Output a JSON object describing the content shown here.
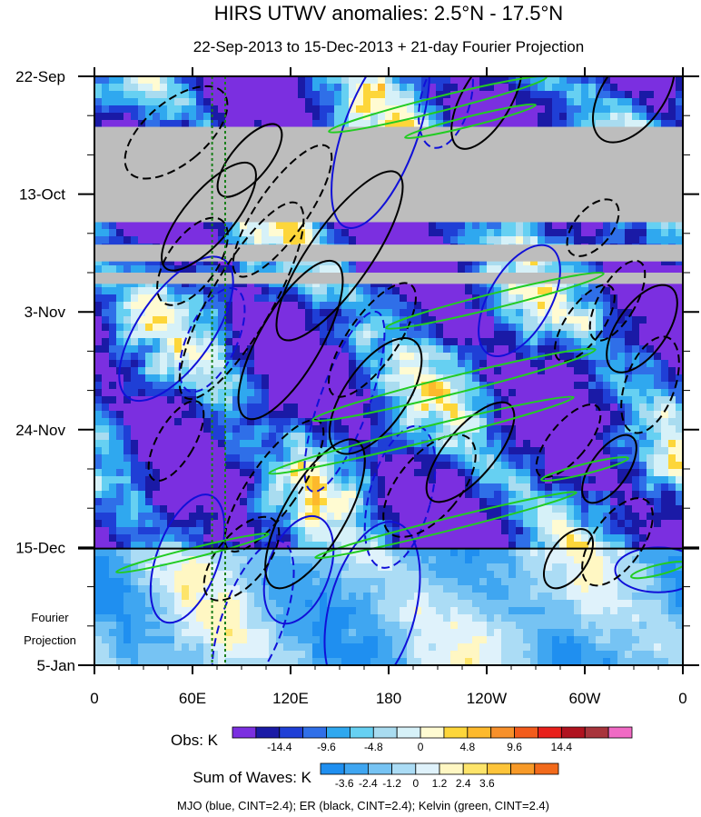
{
  "chart_data": {
    "type": "heatmap",
    "title": "HIRS UTWV anomalies: 2.5°N - 17.5°N",
    "subtitle": "22-Sep-2013 to 15-Dec-2013 + 21-day Fourier Projection",
    "x_ticks": [
      "0",
      "60E",
      "120E",
      "180",
      "120W",
      "60W",
      "0"
    ],
    "x_range_deg_east": [
      0,
      360
    ],
    "y_ticks": [
      "22-Sep",
      "13-Oct",
      "3-Nov",
      "24-Nov",
      "15-Dec",
      "5-Jan"
    ],
    "y_range_days": [
      0,
      105
    ],
    "y_tick_days": [
      0,
      21,
      42,
      63,
      84,
      105
    ],
    "projection_label_line1": "Fourier",
    "projection_label_line2": "Projection",
    "projection_start_day": 84,
    "vertical_dotted_lines_deg_east": [
      72,
      80
    ],
    "missing_bands_days": [
      [
        9,
        26
      ],
      [
        30,
        33
      ],
      [
        35,
        37
      ]
    ],
    "obs_colorbar": {
      "label": "Obs: K",
      "tick_labels": [
        "-14.4",
        "-9.6",
        "-4.8",
        "0",
        "4.8",
        "9.6",
        "14.4"
      ],
      "colors": [
        "#7b2fe0",
        "#1a1aa6",
        "#1f3fd6",
        "#2f6fe8",
        "#2fa8ef",
        "#66d0f2",
        "#a9dcf0",
        "#d6f1f8",
        "#fffbd2",
        "#fdd63a",
        "#fdb92c",
        "#f7902a",
        "#f25b1b",
        "#e8201b",
        "#b0131f",
        "#a8343c",
        "#f06ac4"
      ]
    },
    "waves_colorbar": {
      "label": "Sum of Waves: K",
      "tick_labels": [
        "-3.6",
        "-2.4",
        "-1.2",
        "0",
        "1.2",
        "2.4",
        "3.6"
      ],
      "colors": [
        "#1f8ff0",
        "#3fa6f1",
        "#76c3f3",
        "#abdcf5",
        "#dff2fb",
        "#fff7c3",
        "#fde46a",
        "#fdc43a",
        "#f79a28",
        "#f26a1b"
      ]
    },
    "footnote": "MJO (blue, CINT=2.4); ER (black, CINT=2.4); Kelvin (green, CINT=2.4)",
    "series": [
      {
        "name": "MJO",
        "color": "#1010d8",
        "contour_interval": 2.4
      },
      {
        "name": "ER",
        "color": "#000000",
        "contour_interval": 2.4
      },
      {
        "name": "Kelvin",
        "color": "#22cc22",
        "contour_interval": 2.4
      }
    ],
    "contours": [
      {
        "wave": "MJO",
        "sign": "pos",
        "lon": 175,
        "day": 10,
        "a": 6,
        "b": 18,
        "ang": 20
      },
      {
        "wave": "MJO",
        "sign": "neg",
        "lon": 215,
        "day": 4,
        "a": 4,
        "b": 9,
        "ang": 15
      },
      {
        "wave": "MJO",
        "sign": "pos",
        "lon": 50,
        "day": 45,
        "a": 6,
        "b": 15,
        "ang": 35
      },
      {
        "wave": "MJO",
        "sign": "neg",
        "lon": 72,
        "day": 47,
        "a": 4,
        "b": 10,
        "ang": 25
      },
      {
        "wave": "MJO",
        "sign": "neg",
        "lon": 153,
        "day": 58,
        "a": 4,
        "b": 17,
        "ang": 20
      },
      {
        "wave": "MJO",
        "sign": "neg",
        "lon": 187,
        "day": 75,
        "a": 5,
        "b": 13,
        "ang": 15
      },
      {
        "wave": "MJO",
        "sign": "pos",
        "lon": 260,
        "day": 40,
        "a": 5,
        "b": 11,
        "ang": 30
      },
      {
        "wave": "MJO",
        "sign": "pos",
        "lon": 57,
        "day": 86,
        "a": 5,
        "b": 12,
        "ang": 20
      },
      {
        "wave": "MJO",
        "sign": "pos",
        "lon": 125,
        "day": 88,
        "a": 5,
        "b": 10,
        "ang": 20
      },
      {
        "wave": "MJO",
        "sign": "pos",
        "lon": 170,
        "day": 95,
        "a": 7,
        "b": 16,
        "ang": 15
      },
      {
        "wave": "MJO",
        "sign": "neg",
        "lon": 97,
        "day": 97,
        "a": 5,
        "b": 15,
        "ang": 20
      },
      {
        "wave": "MJO",
        "sign": "pos",
        "lon": 345,
        "day": 88,
        "a": 7,
        "b": 4,
        "ang": 0
      },
      {
        "wave": "ER",
        "sign": "pos",
        "lon": 240,
        "day": 4,
        "a": 4,
        "b": 10,
        "ang": 30
      },
      {
        "wave": "ER",
        "sign": "pos",
        "lon": 330,
        "day": 3,
        "a": 5,
        "b": 10,
        "ang": 35
      },
      {
        "wave": "ER",
        "sign": "neg",
        "lon": 50,
        "day": 10,
        "a": 5,
        "b": 11,
        "ang": 50
      },
      {
        "wave": "ER",
        "sign": "pos",
        "lon": 95,
        "day": 15,
        "a": 3,
        "b": 8,
        "ang": 40
      },
      {
        "wave": "ER",
        "sign": "pos",
        "lon": 70,
        "day": 25,
        "a": 4,
        "b": 12,
        "ang": 40
      },
      {
        "wave": "ER",
        "sign": "neg",
        "lon": 115,
        "day": 24,
        "a": 4,
        "b": 14,
        "ang": 35
      },
      {
        "wave": "ER",
        "sign": "pos",
        "lon": 150,
        "day": 32,
        "a": 5,
        "b": 18,
        "ang": 35
      },
      {
        "wave": "ER",
        "sign": "neg",
        "lon": 60,
        "day": 33,
        "a": 4,
        "b": 9,
        "ang": 35
      },
      {
        "wave": "ER",
        "sign": "neg",
        "lon": 90,
        "day": 40,
        "a": 5,
        "b": 20,
        "ang": 30
      },
      {
        "wave": "ER",
        "sign": "pos",
        "lon": 120,
        "day": 47,
        "a": 5,
        "b": 16,
        "ang": 30
      },
      {
        "wave": "ER",
        "sign": "pos",
        "lon": 172,
        "day": 57,
        "a": 5,
        "b": 12,
        "ang": 35
      },
      {
        "wave": "ER",
        "sign": "neg",
        "lon": 170,
        "day": 47,
        "a": 4,
        "b": 12,
        "ang": 35
      },
      {
        "wave": "ER",
        "sign": "neg",
        "lon": 50,
        "day": 65,
        "a": 3,
        "b": 8,
        "ang": 30
      },
      {
        "wave": "ER",
        "sign": "neg",
        "lon": 110,
        "day": 73,
        "a": 4,
        "b": 14,
        "ang": 35
      },
      {
        "wave": "ER",
        "sign": "pos",
        "lon": 135,
        "day": 78,
        "a": 5,
        "b": 15,
        "ang": 30
      },
      {
        "wave": "ER",
        "sign": "neg",
        "lon": 205,
        "day": 73,
        "a": 5,
        "b": 11,
        "ang": 40
      },
      {
        "wave": "ER",
        "sign": "pos",
        "lon": 230,
        "day": 67,
        "a": 4,
        "b": 11,
        "ang": 40
      },
      {
        "wave": "ER",
        "sign": "neg",
        "lon": 290,
        "day": 65,
        "a": 3,
        "b": 8,
        "ang": 40
      },
      {
        "wave": "ER",
        "sign": "pos",
        "lon": 315,
        "day": 70,
        "a": 3,
        "b": 7,
        "ang": 35
      },
      {
        "wave": "ER",
        "sign": "neg",
        "lon": 320,
        "day": 83,
        "a": 4,
        "b": 9,
        "ang": 35
      },
      {
        "wave": "ER",
        "sign": "pos",
        "lon": 290,
        "day": 86,
        "a": 3,
        "b": 6,
        "ang": 35
      },
      {
        "wave": "ER",
        "sign": "neg",
        "lon": 340,
        "day": 55,
        "a": 4,
        "b": 9,
        "ang": 20
      },
      {
        "wave": "ER",
        "sign": "neg",
        "lon": 300,
        "day": 44,
        "a": 3,
        "b": 8,
        "ang": 35
      },
      {
        "wave": "ER",
        "sign": "neg",
        "lon": 320,
        "day": 40,
        "a": 3,
        "b": 8,
        "ang": 30
      },
      {
        "wave": "ER",
        "sign": "pos",
        "lon": 335,
        "day": 45,
        "a": 4,
        "b": 9,
        "ang": 35
      },
      {
        "wave": "ER",
        "sign": "neg",
        "lon": 305,
        "day": 27,
        "a": 3,
        "b": 6,
        "ang": 40
      },
      {
        "wave": "ER",
        "sign": "neg",
        "lon": 90,
        "day": 86,
        "a": 4,
        "b": 9,
        "ang": 40
      },
      {
        "wave": "Kelvin",
        "sign": "pos",
        "lon": 210,
        "day": 5,
        "a": 1.2,
        "b": 20,
        "ang": 76
      },
      {
        "wave": "Kelvin",
        "sign": "pos",
        "lon": 230,
        "day": 8,
        "a": 0.8,
        "b": 12,
        "ang": 76
      },
      {
        "wave": "Kelvin",
        "sign": "pos",
        "lon": 245,
        "day": 40,
        "a": 1.2,
        "b": 20,
        "ang": 76
      },
      {
        "wave": "Kelvin",
        "sign": "pos",
        "lon": 220,
        "day": 55,
        "a": 1.4,
        "b": 26,
        "ang": 76
      },
      {
        "wave": "Kelvin",
        "sign": "pos",
        "lon": 200,
        "day": 64,
        "a": 1.2,
        "b": 28,
        "ang": 76
      },
      {
        "wave": "Kelvin",
        "sign": "pos",
        "lon": 215,
        "day": 80,
        "a": 1,
        "b": 24,
        "ang": 76
      },
      {
        "wave": "Kelvin",
        "sign": "pos",
        "lon": 300,
        "day": 70,
        "a": 0.8,
        "b": 8,
        "ang": 76
      },
      {
        "wave": "Kelvin",
        "sign": "pos",
        "lon": 60,
        "day": 85,
        "a": 0.8,
        "b": 14,
        "ang": 76
      },
      {
        "wave": "Kelvin",
        "sign": "pos",
        "lon": 345,
        "day": 88,
        "a": 0.8,
        "b": 5,
        "ang": 76
      }
    ]
  }
}
